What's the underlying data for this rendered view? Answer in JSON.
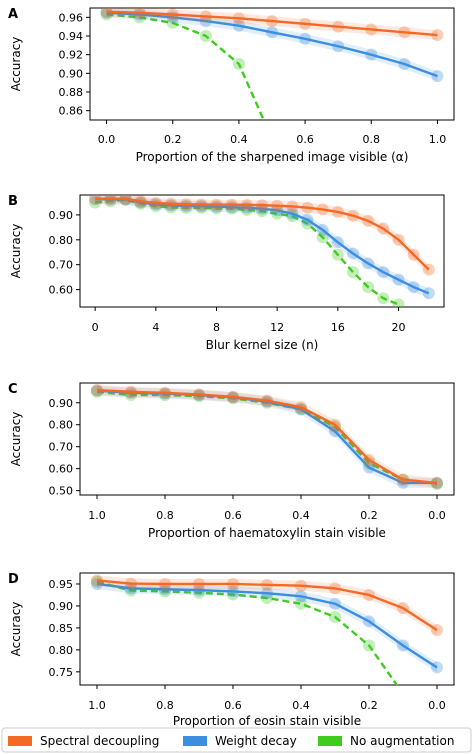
{
  "colors": {
    "spectral": "#f46a25",
    "weight": "#3b8ee0",
    "noaug": "#3fcc1e"
  },
  "legend": [
    {
      "key": "spectral",
      "label": "Spectral decoupling"
    },
    {
      "key": "weight",
      "label": "Weight decay"
    },
    {
      "key": "noaug",
      "label": "No augmentation"
    }
  ],
  "chart_data": [
    {
      "panel": "A",
      "type": "line",
      "ylabel": "Accuracy",
      "xlabel": "Proportion of the sharpened image visible (α)",
      "xlim": [
        -0.05,
        1.05
      ],
      "ylim": [
        0.85,
        0.97
      ],
      "invert_x": false,
      "xticks": [
        0.0,
        0.2,
        0.4,
        0.6,
        0.8,
        1.0
      ],
      "xtick_labels": [
        "0.0",
        "0.2",
        "0.4",
        "0.6",
        "0.8",
        "1.0"
      ],
      "yticks": [
        0.86,
        0.88,
        0.9,
        0.92,
        0.94,
        0.96
      ],
      "ytick_labels": [
        "0.86",
        "0.88",
        "0.90",
        "0.92",
        "0.94",
        "0.96"
      ],
      "x": [
        0.0,
        0.1,
        0.2,
        0.3,
        0.4,
        0.5,
        0.6,
        0.7,
        0.8,
        0.9,
        1.0
      ],
      "series": [
        {
          "key": "spectral",
          "name": "Spectral decoupling",
          "values": [
            0.966,
            0.965,
            0.963,
            0.961,
            0.959,
            0.956,
            0.953,
            0.95,
            0.947,
            0.944,
            0.941
          ]
        },
        {
          "key": "weight",
          "name": "Weight decay",
          "values": [
            0.965,
            0.963,
            0.96,
            0.956,
            0.951,
            0.944,
            0.937,
            0.929,
            0.92,
            0.91,
            0.897
          ]
        },
        {
          "key": "noaug",
          "name": "No augmentation",
          "values": [
            0.963,
            0.96,
            0.954,
            0.94,
            0.91,
            0.83,
            null,
            null,
            null,
            null,
            null
          ]
        }
      ]
    },
    {
      "panel": "B",
      "type": "line",
      "ylabel": "Accuracy",
      "xlabel": "Blur kernel size (n)",
      "xlim": [
        -1.0,
        23.0
      ],
      "ylim": [
        0.53,
        0.98
      ],
      "invert_x": false,
      "xticks": [
        0,
        4,
        8,
        12,
        16,
        20
      ],
      "xtick_labels": [
        "0",
        "4",
        "8",
        "12",
        "16",
        "20"
      ],
      "yticks": [
        0.6,
        0.7,
        0.8,
        0.9
      ],
      "ytick_labels": [
        "0.60",
        "0.70",
        "0.80",
        "0.90"
      ],
      "x": [
        0,
        1,
        2,
        3,
        4,
        5,
        6,
        7,
        8,
        9,
        10,
        11,
        12,
        13,
        14,
        15,
        16,
        17,
        18,
        19,
        20,
        21,
        22
      ],
      "series": [
        {
          "key": "spectral",
          "name": "Spectral decoupling",
          "values": [
            0.965,
            0.965,
            0.965,
            0.955,
            0.948,
            0.945,
            0.943,
            0.942,
            0.941,
            0.941,
            0.94,
            0.939,
            0.937,
            0.934,
            0.929,
            0.922,
            0.912,
            0.897,
            0.876,
            0.845,
            0.8,
            0.74,
            0.68
          ]
        },
        {
          "key": "weight",
          "name": "Weight decay",
          "values": [
            0.963,
            0.962,
            0.962,
            0.95,
            0.942,
            0.938,
            0.936,
            0.935,
            0.933,
            0.931,
            0.929,
            0.925,
            0.918,
            0.905,
            0.88,
            0.84,
            0.79,
            0.745,
            0.705,
            0.67,
            0.64,
            0.61,
            0.585
          ]
        },
        {
          "key": "noaug",
          "name": "No augmentation",
          "values": [
            0.95,
            0.955,
            0.96,
            0.945,
            0.935,
            0.93,
            0.928,
            0.928,
            0.926,
            0.925,
            0.92,
            0.915,
            0.905,
            0.895,
            0.865,
            0.81,
            0.74,
            0.67,
            0.61,
            0.565,
            0.54,
            null,
            null
          ]
        }
      ]
    },
    {
      "panel": "C",
      "type": "line",
      "ylabel": "Accuracy",
      "xlabel": "Proportion of haematoxylin stain visible",
      "xlim": [
        1.05,
        -0.05
      ],
      "ylim": [
        0.48,
        0.99
      ],
      "invert_x": true,
      "xticks": [
        1.0,
        0.8,
        0.6,
        0.4,
        0.2,
        0.0
      ],
      "xtick_labels": [
        "1.0",
        "0.8",
        "0.6",
        "0.4",
        "0.2",
        "0.0"
      ],
      "yticks": [
        0.5,
        0.6,
        0.7,
        0.8,
        0.9
      ],
      "ytick_labels": [
        "0.50",
        "0.60",
        "0.70",
        "0.80",
        "0.90"
      ],
      "x": [
        1.0,
        0.9,
        0.8,
        0.7,
        0.6,
        0.5,
        0.4,
        0.3,
        0.2,
        0.1,
        0.0
      ],
      "series": [
        {
          "key": "spectral",
          "name": "Spectral decoupling",
          "values": [
            0.958,
            0.95,
            0.945,
            0.938,
            0.927,
            0.91,
            0.88,
            0.8,
            0.64,
            0.55,
            0.535
          ]
        },
        {
          "key": "weight",
          "name": "Weight decay",
          "values": [
            0.955,
            0.945,
            0.942,
            0.935,
            0.925,
            0.905,
            0.87,
            0.77,
            0.605,
            0.535,
            0.535
          ]
        },
        {
          "key": "noaug",
          "name": "No augmentation",
          "values": [
            0.95,
            0.935,
            0.935,
            0.93,
            0.92,
            0.9,
            0.87,
            0.79,
            0.625,
            0.55,
            0.53
          ]
        }
      ]
    },
    {
      "panel": "D",
      "type": "line",
      "ylabel": "Accuracy",
      "xlabel": "Proportion of eosin stain visible",
      "xlim": [
        1.05,
        -0.05
      ],
      "ylim": [
        0.72,
        0.975
      ],
      "invert_x": true,
      "xticks": [
        1.0,
        0.8,
        0.6,
        0.4,
        0.2,
        0.0
      ],
      "xtick_labels": [
        "1.0",
        "0.8",
        "0.6",
        "0.4",
        "0.2",
        "0.0"
      ],
      "yticks": [
        0.75,
        0.8,
        0.85,
        0.9,
        0.95
      ],
      "ytick_labels": [
        "0.75",
        "0.80",
        "0.85",
        "0.90",
        "0.95"
      ],
      "x": [
        1.0,
        0.9,
        0.8,
        0.7,
        0.6,
        0.5,
        0.4,
        0.3,
        0.2,
        0.1,
        0.0
      ],
      "series": [
        {
          "key": "spectral",
          "name": "Spectral decoupling",
          "values": [
            0.958,
            0.951,
            0.95,
            0.95,
            0.95,
            0.948,
            0.946,
            0.94,
            0.925,
            0.895,
            0.845
          ]
        },
        {
          "key": "weight",
          "name": "Weight decay",
          "values": [
            0.95,
            0.94,
            0.938,
            0.936,
            0.933,
            0.929,
            0.922,
            0.905,
            0.865,
            0.81,
            0.76
          ]
        },
        {
          "key": "noaug",
          "name": "No augmentation",
          "values": [
            0.955,
            0.935,
            0.933,
            0.93,
            0.926,
            0.918,
            0.905,
            0.875,
            0.81,
            0.7,
            null
          ]
        }
      ]
    }
  ]
}
